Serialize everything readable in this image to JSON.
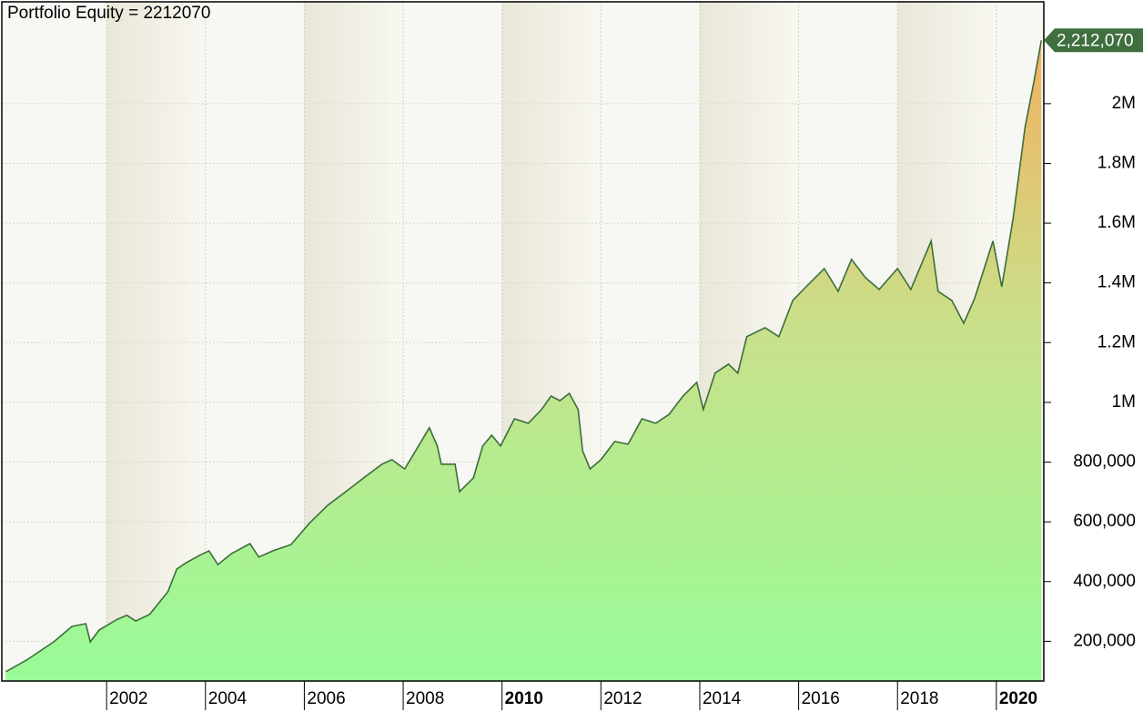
{
  "chart_data": {
    "type": "area",
    "title": "Portfolio Equity = 2212070",
    "x": [
      1999.96,
      2000.38,
      2000.93,
      2001.3,
      2001.58,
      2001.67,
      2001.85,
      2002.22,
      2002.41,
      2002.59,
      2002.87,
      2003.24,
      2003.42,
      2003.61,
      2003.88,
      2004.07,
      2004.25,
      2004.53,
      2004.9,
      2005.08,
      2005.36,
      2005.73,
      2006.1,
      2006.47,
      2006.84,
      2007.2,
      2007.57,
      2007.77,
      2008.03,
      2008.31,
      2008.53,
      2008.69,
      2008.77,
      2009.05,
      2009.14,
      2009.42,
      2009.61,
      2009.79,
      2009.97,
      2010.25,
      2010.53,
      2010.8,
      2010.99,
      2011.17,
      2011.36,
      2011.54,
      2011.63,
      2011.78,
      2012.0,
      2012.28,
      2012.55,
      2012.83,
      2013.11,
      2013.38,
      2013.66,
      2013.94,
      2014.07,
      2014.31,
      2014.58,
      2014.77,
      2014.95,
      2015.32,
      2015.6,
      2015.88,
      2016.15,
      2016.52,
      2016.8,
      2017.07,
      2017.35,
      2017.63,
      2018.0,
      2018.27,
      2018.68,
      2018.82,
      2019.1,
      2019.34,
      2019.56,
      2019.93,
      2020.11,
      2020.34,
      2020.58,
      2020.76,
      2020.91
    ],
    "series": [
      {
        "name": "Portfolio Equity",
        "color": "#3b6e3b",
        "values": [
          98000,
          137000,
          198000,
          250000,
          259000,
          198000,
          238000,
          274000,
          287000,
          268000,
          290000,
          366000,
          442000,
          463000,
          488000,
          503000,
          457000,
          494000,
          527000,
          482000,
          503000,
          524000,
          595000,
          655000,
          701000,
          747000,
          793000,
          808000,
          777000,
          854000,
          915000,
          854000,
          793000,
          793000,
          701000,
          747000,
          854000,
          890000,
          854000,
          945000,
          930000,
          976000,
          1021000,
          1006000,
          1030000,
          976000,
          838000,
          777000,
          808000,
          869000,
          860000,
          945000,
          930000,
          960000,
          1021000,
          1067000,
          976000,
          1098000,
          1128000,
          1098000,
          1220000,
          1250000,
          1220000,
          1341000,
          1387000,
          1448000,
          1372000,
          1479000,
          1418000,
          1378000,
          1448000,
          1378000,
          1540000,
          1372000,
          1341000,
          1265000,
          1348000,
          1540000,
          1387000,
          1616000,
          1921000,
          2073000,
          2212070
        ],
        "value_labels": [
          null,
          null,
          null,
          null,
          null,
          null,
          null,
          null,
          null,
          null,
          null,
          null,
          null,
          null,
          null,
          null,
          null,
          null,
          null,
          null,
          null,
          null,
          null,
          null,
          null,
          null,
          null,
          null,
          null,
          null,
          null,
          null,
          null,
          null,
          null,
          null,
          null,
          null,
          null,
          null,
          null,
          null,
          null,
          null,
          null,
          null,
          null,
          null,
          null,
          null,
          null,
          null,
          null,
          null,
          null,
          null,
          null,
          null,
          null,
          null,
          null,
          null,
          null,
          null,
          null,
          null,
          null,
          null,
          null,
          null,
          null,
          null,
          null,
          null,
          null,
          null,
          null,
          null,
          null,
          null,
          null,
          null,
          "2,212,070"
        ]
      }
    ],
    "xlim": [
      1999.88,
      2020.96
    ],
    "xticks": [
      2002,
      2004,
      2006,
      2008,
      2010,
      2012,
      2014,
      2016,
      2018,
      2020
    ],
    "ylim": [
      67000,
      2341000
    ],
    "yticks": [
      {
        "value": 200000,
        "label": "200,000"
      },
      {
        "value": 400000,
        "label": "400,000"
      },
      {
        "value": 600000,
        "label": "600,000"
      },
      {
        "value": 800000,
        "label": "800,000"
      },
      {
        "value": 1000000,
        "label": "1M"
      },
      {
        "value": 1200000,
        "label": "1.2M"
      },
      {
        "value": 1400000,
        "label": "1.4M"
      },
      {
        "value": 1600000,
        "label": "1.6M"
      },
      {
        "value": 1800000,
        "label": "1.8M"
      },
      {
        "value": 2000000,
        "label": "2M"
      }
    ],
    "grid": true
  }
}
